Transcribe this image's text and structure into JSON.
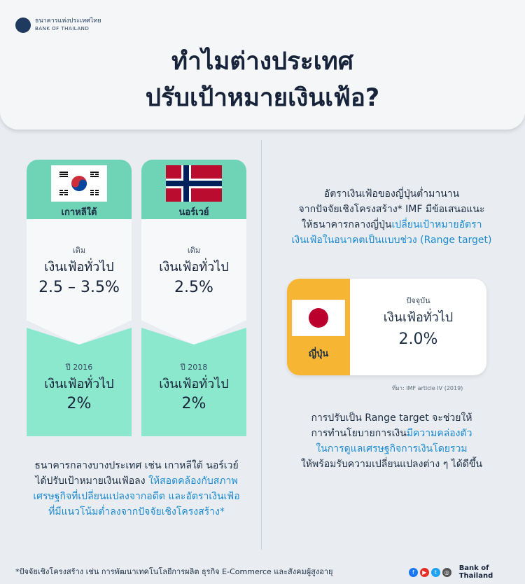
{
  "header": {
    "logo_th": "ธนาคารแห่งประเทศไทย",
    "logo_en": "BANK OF THAILAND",
    "title_line1": "ทำไมต่างประเทศ",
    "title_line2": "ปรับเป้าหมายเงินเฟ้อ?"
  },
  "korea": {
    "country": "เกาหลีใต้",
    "old_label": "เดิม",
    "old_title": "เงินเฟ้อทั่วไป",
    "old_value": "2.5 – 3.5%",
    "new_label": "ปี 2016",
    "new_title": "เงินเฟ้อทั่วไป",
    "new_value": "2%"
  },
  "norway": {
    "country": "นอร์เวย์",
    "old_label": "เดิม",
    "old_title": "เงินเฟ้อทั่วไป",
    "old_value": "2.5%",
    "new_label": "ปี 2018",
    "new_title": "เงินเฟ้อทั่วไป",
    "new_value": "2%"
  },
  "left_para": {
    "line1": "ธนาคารกลางบางประเทศ เช่น เกาหลีใต้ นอร์เวย์",
    "line2_plain": "ได้ปรับเป้าหมายเงินเฟ้อลง ",
    "line2_hl": "ให้สอดคล้องกับสภาพ",
    "line3_hl": "เศรษฐกิจที่เปลี่ยนแปลงจากอดีต และอัตราเงินเฟ้อ",
    "line4_hl": "ที่มีแนวโน้มต่ำลงจากปัจจัยเชิงโครงสร้าง*"
  },
  "right_para": {
    "line1": "อัตราเงินเฟ้อของญี่ปุ่นต่ำมานาน",
    "line2": "จากปัจจัยเชิงโครงสร้าง* IMF มีข้อเสนอแนะ",
    "line3_plain": "ให้ธนาคารกลางญี่ปุ่น",
    "line3_hl": "เปลี่ยนเป้าหมายอัตรา",
    "line4_hl": "เงินเฟ้อในอนาคตเป็นแบบช่วง (Range target)"
  },
  "japan": {
    "country": "ญี่ปุ่น",
    "label": "ปัจจุบัน",
    "title": "เงินเฟ้อทั่วไป",
    "value": "2.0%"
  },
  "source": "ที่มา: IMF article IV (2019)",
  "right_para2": {
    "line1": "การปรับเป็น Range target จะช่วยให้",
    "line2_plain": "การทำนโยบายการเงิน",
    "line2_hl": "มีความคล่องตัว",
    "line3_hl": "ในการดูแลเศรษฐกิจการเงินโดยรวม",
    "line4": "ให้พร้อมรับความเปลี่ยนแปลงต่าง ๆ ได้ดีขึ้น"
  },
  "footnote": "*ปัจจัยเชิงโครงสร้าง เช่น การพัฒนาเทคโนโลยีการผลิต ธุรกิจ E-Commerce และสังคมผู้สูงอายุ",
  "footer_brand": "Bank of Thailand",
  "colors": {
    "teal": "#6fd3b6",
    "mint": "#8be8cd",
    "orange": "#f6b533",
    "highlight": "#1a8ad0"
  }
}
